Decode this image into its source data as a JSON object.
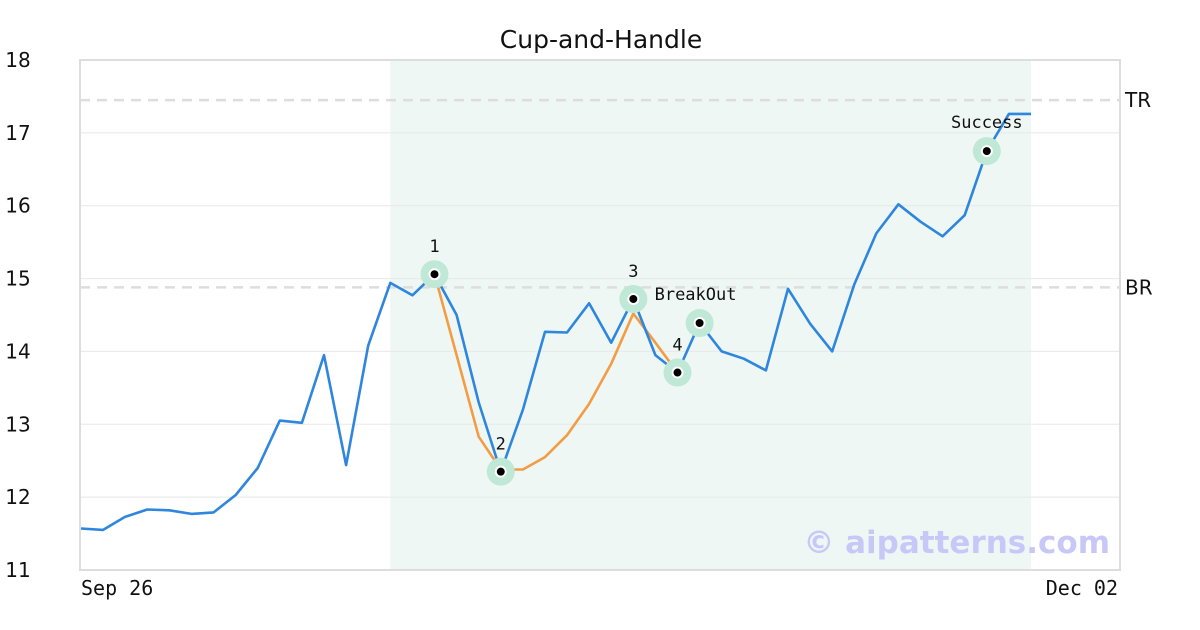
{
  "chart_data": {
    "type": "line",
    "title": "Cup-and-Handle",
    "xlabel": "",
    "ylabel": "",
    "ylim": [
      11,
      18
    ],
    "yticks": [
      11,
      12,
      13,
      14,
      15,
      16,
      17,
      18
    ],
    "x_tick_labels": [
      "Sep 26",
      "Dec 02"
    ],
    "grid": true,
    "series": [
      {
        "color": "#2e86de",
        "values": [
          11.57,
          11.55,
          11.73,
          11.83,
          11.82,
          11.77,
          11.79,
          12.03,
          12.4,
          13.05,
          13.02,
          13.95,
          12.44,
          14.08,
          14.94,
          14.77,
          15.06,
          14.5,
          13.3,
          12.35,
          13.2,
          14.27,
          14.26,
          14.66,
          14.12,
          14.72,
          13.95,
          13.71,
          14.39,
          14.0,
          13.9,
          13.74,
          14.86,
          14.38,
          14.0,
          14.92,
          15.62,
          16.02,
          15.78,
          15.58,
          15.87,
          16.75,
          17.26,
          17.26
        ]
      },
      {
        "color": "#f39c45",
        "x_index": [
          16,
          17,
          18,
          19,
          20,
          21,
          22,
          23,
          24,
          25,
          26,
          27
        ],
        "values": [
          15.06,
          13.95,
          12.83,
          12.38,
          12.38,
          12.55,
          12.85,
          13.28,
          13.83,
          14.52,
          14.12,
          13.71
        ]
      }
    ],
    "levels": [
      {
        "label": "TR",
        "value": 17.45
      },
      {
        "label": "BR",
        "value": 14.88
      }
    ],
    "pattern_region": {
      "x_start_index": 14,
      "x_end_index": 43
    },
    "points": [
      {
        "label": "1",
        "x_index": 16,
        "y": 15.06
      },
      {
        "label": "2",
        "x_index": 19,
        "y": 12.35
      },
      {
        "label": "3",
        "x_index": 25,
        "y": 14.72
      },
      {
        "label": "4",
        "x_index": 27,
        "y": 13.71
      },
      {
        "label": "BreakOut",
        "x_index": 28,
        "y": 14.39
      },
      {
        "label": "Success",
        "x_index": 41,
        "y": 16.75
      }
    ],
    "watermark": "© aipatterns.com",
    "colors": {
      "region": "#eef7f3",
      "marker_halo": "#bfe8d6",
      "level_line": "#dddddd",
      "grid": "#e8e8e8",
      "frame": "#dddddd",
      "watermark": "#c8c8f8"
    }
  }
}
